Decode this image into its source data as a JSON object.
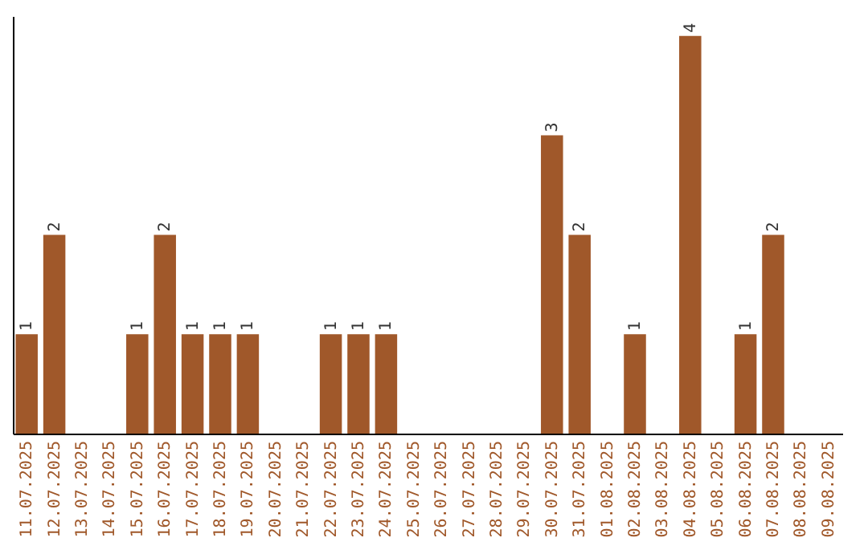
{
  "chart_data": {
    "type": "bar",
    "categories": [
      "11.07.2025",
      "12.07.2025",
      "13.07.2025",
      "14.07.2025",
      "15.07.2025",
      "16.07.2025",
      "17.07.2025",
      "18.07.2025",
      "19.07.2025",
      "20.07.2025",
      "21.07.2025",
      "22.07.2025",
      "23.07.2025",
      "24.07.2025",
      "25.07.2025",
      "26.07.2025",
      "27.07.2025",
      "28.07.2025",
      "29.07.2025",
      "30.07.2025",
      "31.07.2025",
      "01.08.2025",
      "02.08.2025",
      "03.08.2025",
      "04.08.2025",
      "05.08.2025",
      "06.08.2025",
      "07.08.2025",
      "08.08.2025",
      "09.08.2025"
    ],
    "values": [
      1,
      2,
      0,
      0,
      1,
      2,
      1,
      1,
      1,
      0,
      0,
      1,
      1,
      1,
      0,
      0,
      0,
      0,
      0,
      3,
      2,
      0,
      1,
      0,
      4,
      0,
      1,
      2,
      0,
      0
    ],
    "value_labels": [
      "1",
      "2",
      null,
      null,
      "1",
      "2",
      "1",
      "1",
      "1",
      null,
      null,
      "1",
      "1",
      "1",
      null,
      null,
      null,
      null,
      null,
      "3",
      "2",
      null,
      "1",
      null,
      "4",
      null,
      "1",
      "2",
      null,
      null
    ],
    "color": "#a0582a",
    "ylim": [
      0,
      4.2
    ],
    "tick_labels": "x"
  }
}
